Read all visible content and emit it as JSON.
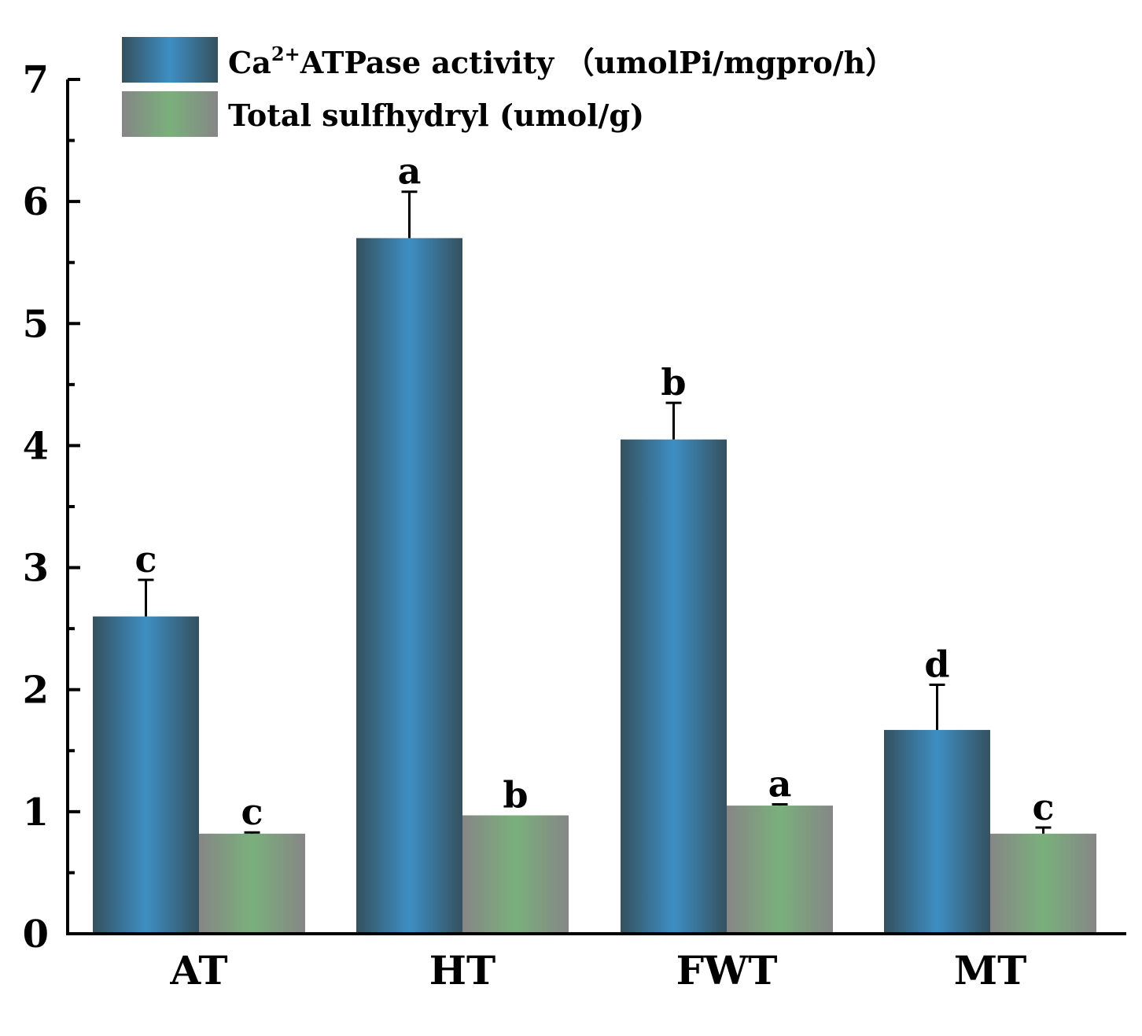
{
  "chart_data": {
    "type": "bar",
    "title": "",
    "xlabel": "",
    "ylabel": "",
    "ylim": [
      0,
      7
    ],
    "yticks": [
      0,
      1,
      2,
      3,
      4,
      5,
      6,
      7
    ],
    "categories": [
      "AT",
      "HT",
      "FWT",
      "MT"
    ],
    "series": [
      {
        "name": "Ca2+ATPase activity (umolPi/mgpro/h)",
        "legend_main": "Ca",
        "legend_sup": "2+",
        "legend_rest": "ATPase activity （umolPi/mgpro/h）",
        "values": [
          2.6,
          5.7,
          4.05,
          1.67
        ],
        "errors": [
          0.3,
          0.38,
          0.3,
          0.37
        ],
        "letters": [
          "c",
          "a",
          "b",
          "d"
        ],
        "edge_color": "#35515f",
        "center_color": "#3e8fc4"
      },
      {
        "name": "Total sulfhydryl (umol/g)",
        "legend_main": "Total sulfhydryl (umol/g)",
        "values": [
          0.82,
          0.97,
          1.05,
          0.82
        ],
        "errors": [
          0.01,
          0.0,
          0.01,
          0.05
        ],
        "letters": [
          "c",
          "b",
          "a",
          "c"
        ],
        "edge_color": "#868686",
        "center_color": "#7ab07c"
      }
    ],
    "legend_position": "top-left"
  }
}
